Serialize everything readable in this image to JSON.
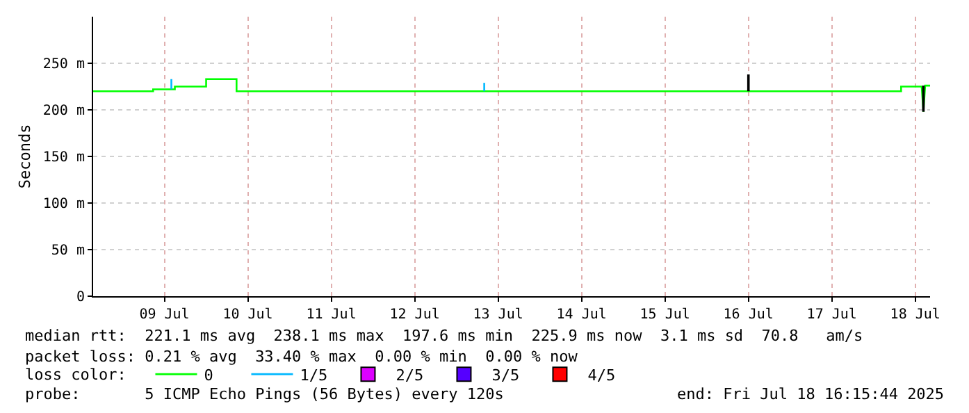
{
  "chart_data": {
    "type": "line",
    "ylabel": "Seconds",
    "xlim": [
      "2025-07-08T15:30",
      "2025-07-18T16:15"
    ],
    "xticks": [
      {
        "value": "2025-07-09T12:00",
        "label": "09 Jul"
      },
      {
        "value": "2025-07-10T12:00",
        "label": "10 Jul"
      },
      {
        "value": "2025-07-11T12:00",
        "label": "11 Jul"
      },
      {
        "value": "2025-07-12T12:00",
        "label": "12 Jul"
      },
      {
        "value": "2025-07-13T12:00",
        "label": "13 Jul"
      },
      {
        "value": "2025-07-14T12:00",
        "label": "14 Jul"
      },
      {
        "value": "2025-07-15T12:00",
        "label": "15 Jul"
      },
      {
        "value": "2025-07-16T12:00",
        "label": "16 Jul"
      },
      {
        "value": "2025-07-17T12:00",
        "label": "17 Jul"
      },
      {
        "value": "2025-07-18T12:00",
        "label": "18 Jul"
      }
    ],
    "ylim": [
      0,
      300
    ],
    "yticks": [
      0,
      {
        "value": 50,
        "label": "50 m"
      },
      {
        "value": 100,
        "label": "100 m"
      },
      {
        "value": 150,
        "label": "150 m"
      },
      {
        "value": 200,
        "label": "200 m"
      },
      {
        "value": 250,
        "label": "250 m"
      }
    ],
    "grid": true,
    "legend": "bottom",
    "marker": "none",
    "line_style": "solid",
    "series": [
      {
        "name": "0",
        "color": "#00ff00",
        "x": [
          "2025-07-08T15:30",
          "2025-07-09T08:45",
          "2025-07-09T08:45",
          "2025-07-09T15:00",
          "2025-07-09T15:00",
          "2025-07-10T00:00",
          "2025-07-10T00:00",
          "2025-07-10T08:45",
          "2025-07-10T08:45",
          "2025-07-18T07:55",
          "2025-07-18T07:55",
          "2025-07-18T13:50",
          "2025-07-18T14:20",
          "2025-07-18T14:50",
          "2025-07-18T16:15"
        ],
        "values": [
          220,
          220,
          222,
          222,
          225,
          225,
          233,
          233,
          220,
          220,
          225,
          225,
          198,
          226,
          226
        ]
      },
      {
        "name": "1/5",
        "color": "#00b8ff",
        "x": [
          "2025-07-09T14:00",
          "2025-07-09T14:00",
          "2025-07-09T14:01",
          "2025-07-13T08:00",
          "2025-07-13T08:00"
        ],
        "values": [
          222,
          233,
          null,
          220,
          229
        ]
      },
      {
        "name": "2/5",
        "color": "#dd00ff",
        "values": [
          null
        ]
      },
      {
        "name": "3/5",
        "color": "#5500ff",
        "values": [
          null
        ]
      },
      {
        "name": "4/5",
        "color": "#ff0000",
        "values": [
          null
        ]
      },
      {
        "color": "#000000",
        "x": [
          "2025-07-16T12:00",
          "2025-07-16T12:00",
          "2025-07-16T12:01",
          "2025-07-18T14:20",
          "2025-07-18T14:20"
        ],
        "values": [
          220,
          238,
          null,
          198,
          226
        ]
      }
    ],
    "annotations": [
      "median rtt:  221.1 ms avg  238.1 ms max  197.6 ms min  225.9 ms now  3.1 ms sd  70.8   am/s",
      "packet loss: 0.21 % avg  33.40 % max  0.00 % min  0.00 % now",
      "loss color:",
      "probe:       5 ICMP Echo Pings (56 Bytes) every 120s",
      "end: Fri Jul 18 16:15:44 2025"
    ]
  }
}
